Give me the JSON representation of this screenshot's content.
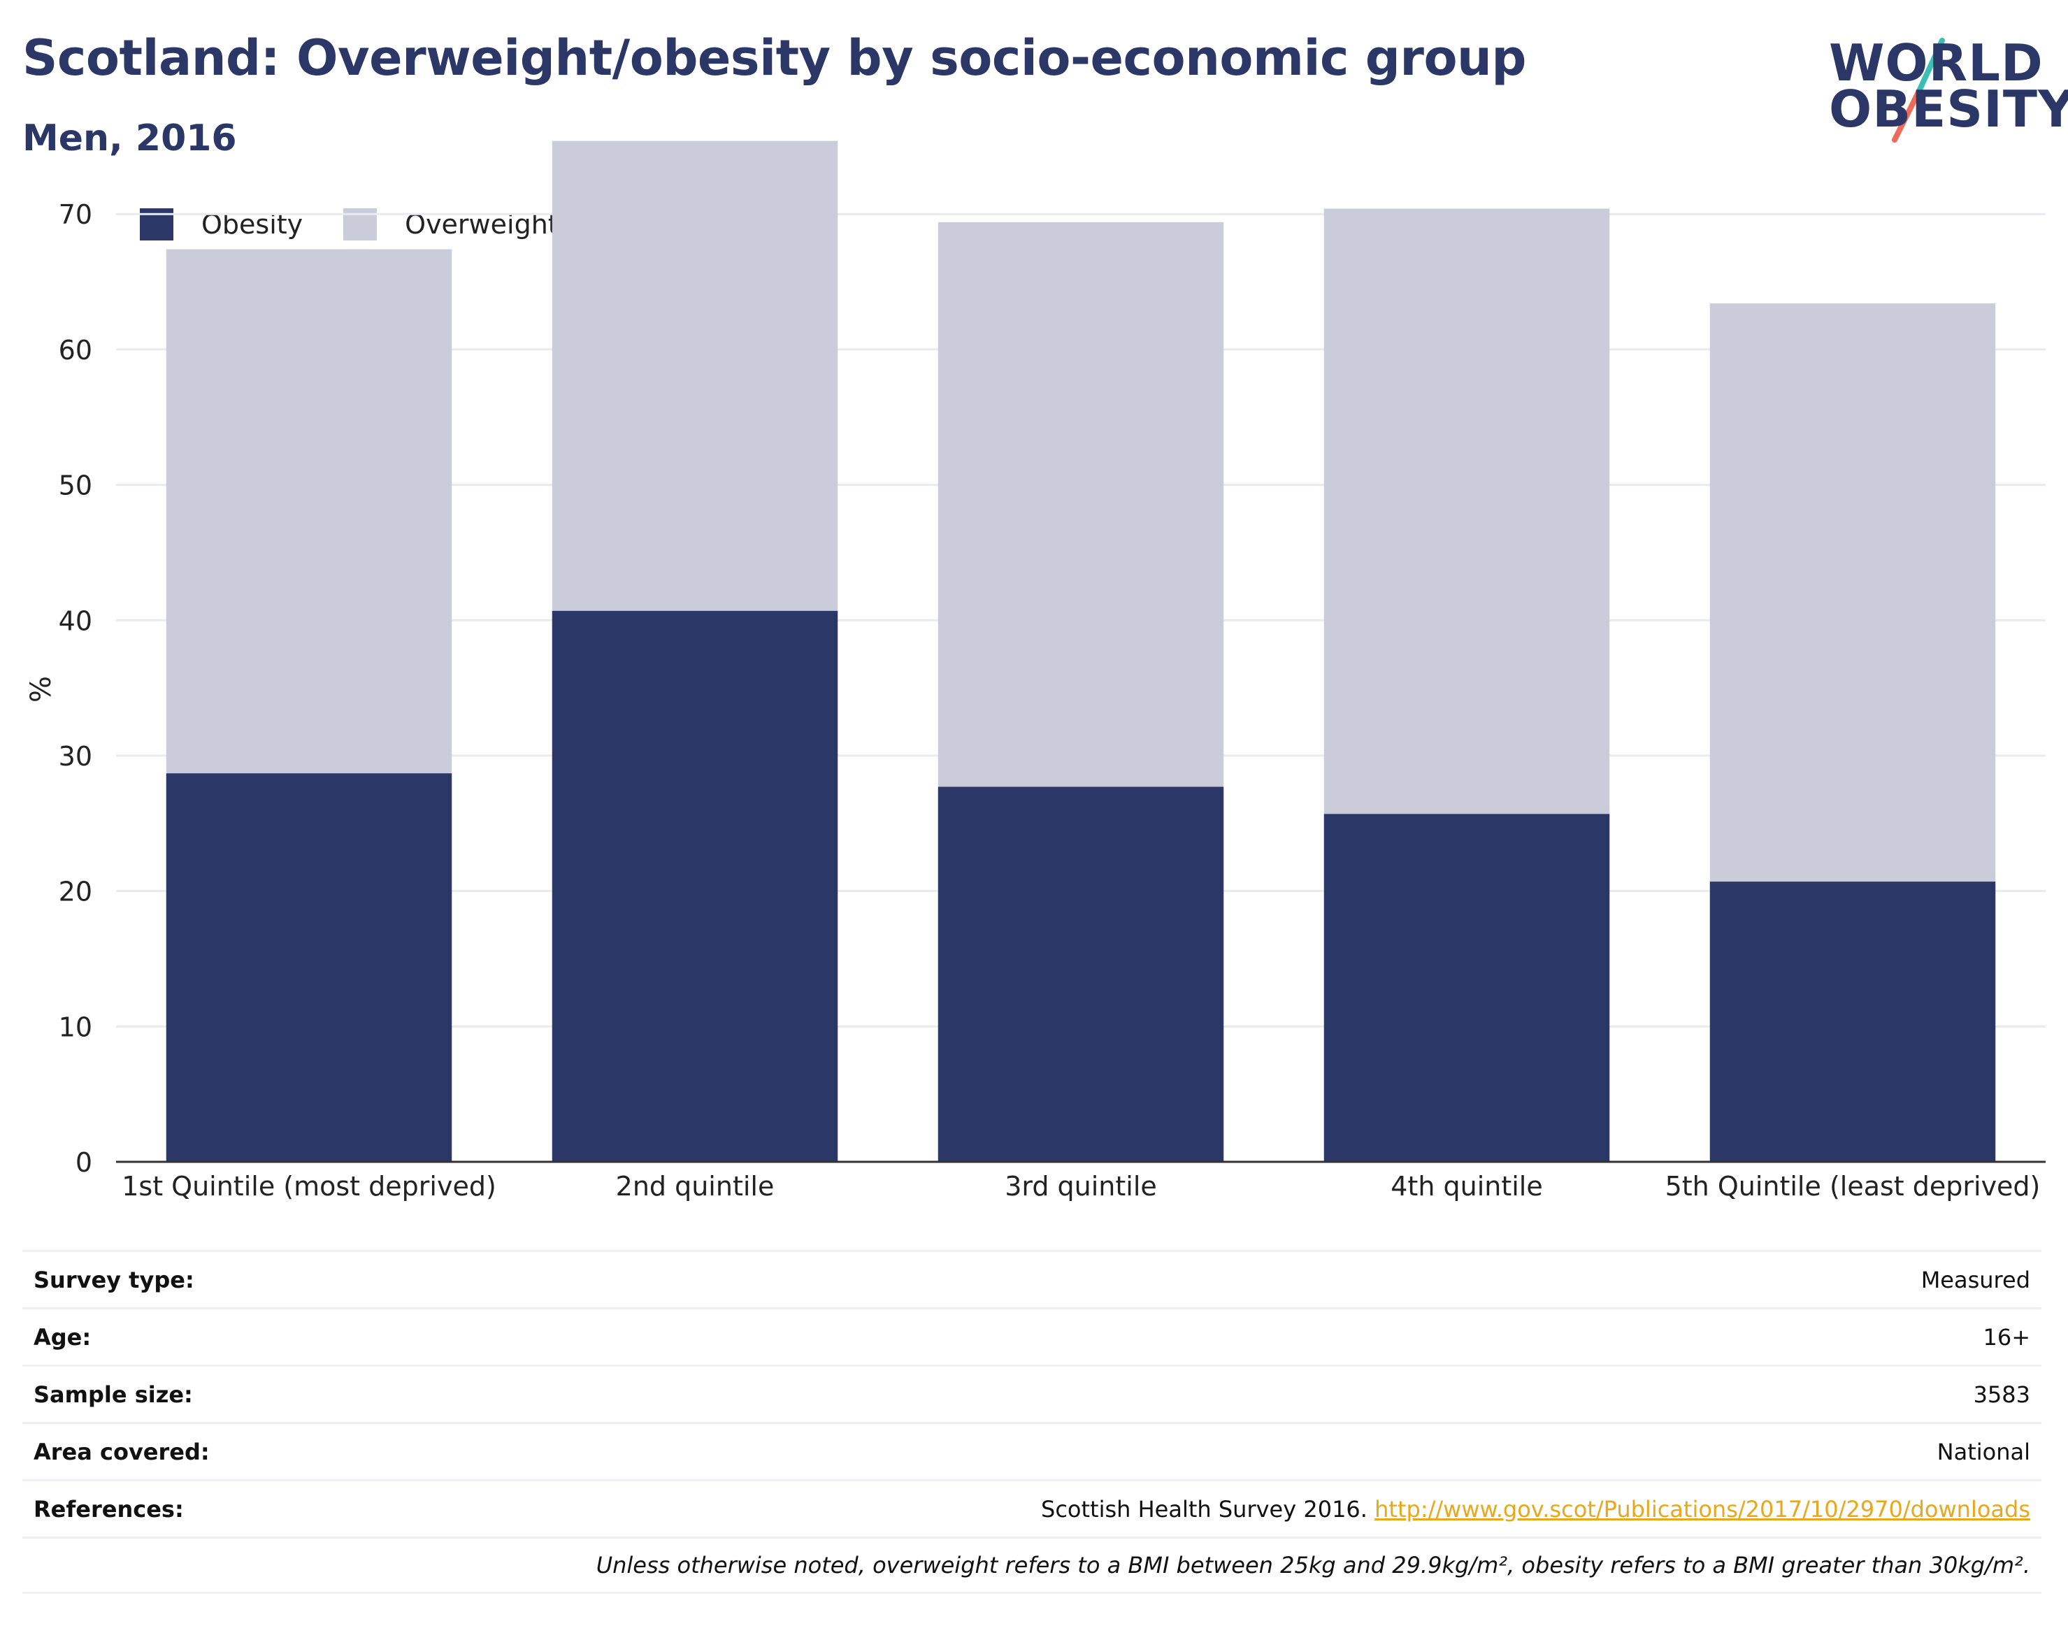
{
  "header": {
    "title": "Scotland: Overweight/obesity by socio-economic group",
    "subtitle": "Men, 2016",
    "logo_top": "WORLD",
    "logo_bottom": "OBESITY"
  },
  "colors": {
    "obesity": "#2b3767",
    "overweight": "#cacdd9",
    "title": "#2b3767",
    "link": "#e9a81b",
    "logo_teal": "#3bbfb4",
    "logo_coral": "#ee6b5b"
  },
  "chart_data": {
    "type": "bar",
    "stacked": true,
    "categories": [
      "1st Quintile (most deprived)",
      "2nd quintile",
      "3rd quintile",
      "4th quintile",
      "5th Quintile (least deprived)"
    ],
    "series": [
      {
        "name": "Obesity",
        "values": [
          28.7,
          40.7,
          27.7,
          25.7,
          20.7
        ]
      },
      {
        "name": "Overweight",
        "values": [
          38.7,
          34.7,
          41.7,
          44.7,
          42.7
        ]
      }
    ],
    "ylabel": "%",
    "ylim": [
      0,
      76
    ],
    "yticks": [
      0,
      10,
      20,
      30,
      40,
      50,
      60,
      70
    ],
    "grid": true,
    "legend_position": "top-left"
  },
  "info": {
    "rows": [
      {
        "label": "Survey type:",
        "value": "Measured"
      },
      {
        "label": "Age:",
        "value": "16+"
      },
      {
        "label": "Sample size:",
        "value": "3583"
      },
      {
        "label": "Area covered:",
        "value": "National"
      }
    ],
    "references_label": "References:",
    "references_text": "Scottish Health Survey 2016.",
    "references_link": "http://www.gov.scot/Publications/2017/10/2970/downloads",
    "note": "Unless otherwise noted, overweight refers to a BMI between 25kg and 29.9kg/m², obesity refers to a BMI greater than 30kg/m²."
  }
}
